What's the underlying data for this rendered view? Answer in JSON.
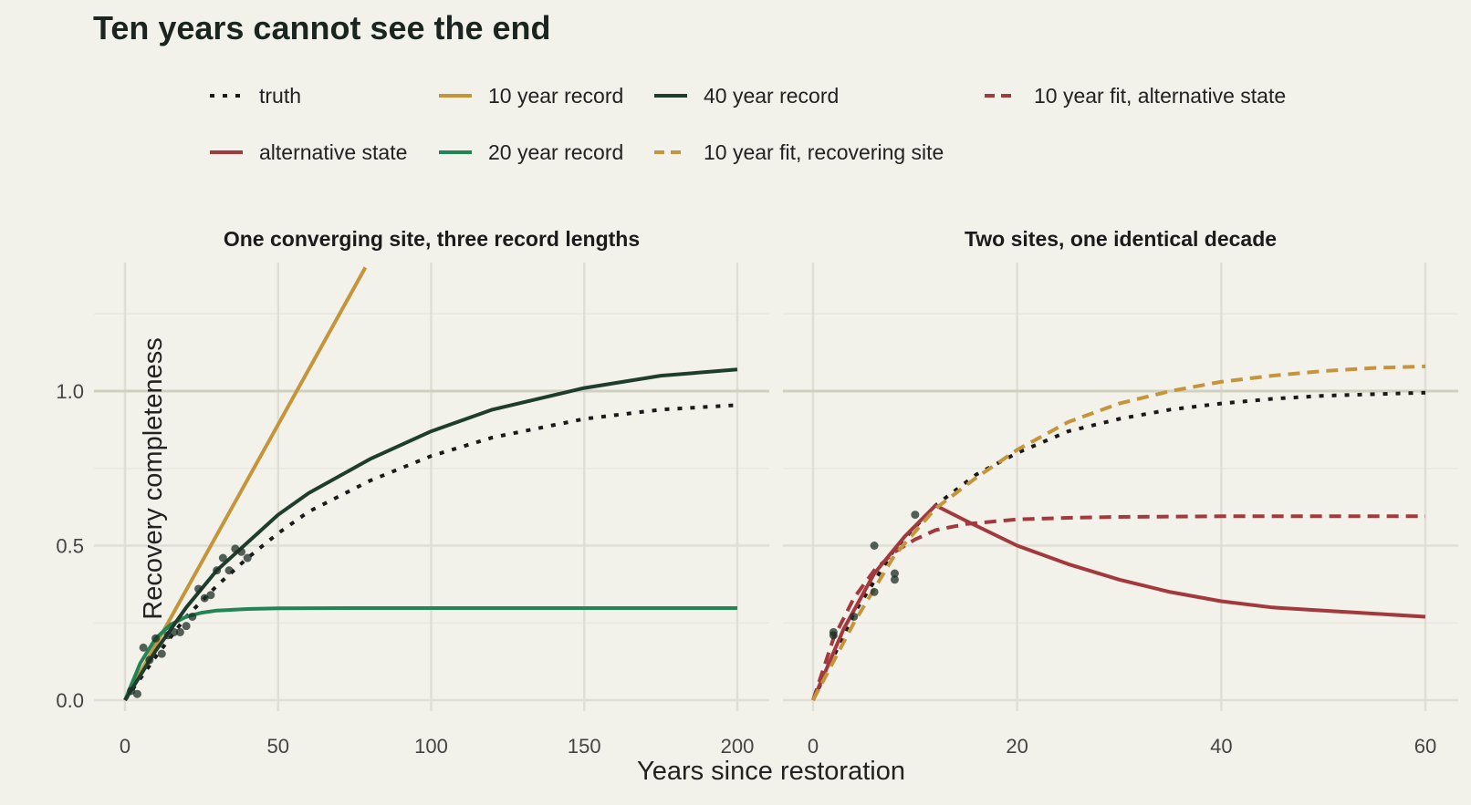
{
  "title": "Ten years cannot see the end",
  "xlabel": "Years since restoration",
  "ylabel": "Recovery completeness",
  "legend": [
    {
      "label": "truth",
      "color": "#1a1a1a",
      "dash": "dotted"
    },
    {
      "label": "10 year record",
      "color": "#c4953a",
      "dash": "solid"
    },
    {
      "label": "40 year record",
      "color": "#1f3d2c",
      "dash": "solid"
    },
    {
      "label": "10 year fit, alternative state",
      "color": "#a3383d",
      "dash": "dashed"
    },
    {
      "label": "alternative state",
      "color": "#a3383d",
      "dash": "solid"
    },
    {
      "label": "20 year record",
      "color": "#238454",
      "dash": "solid"
    },
    {
      "label": "10 year fit, recovering site",
      "color": "#c4953a",
      "dash": "dashed"
    }
  ],
  "chart_data": [
    {
      "type": "line",
      "title": "One converging site, three record lengths",
      "xlim": [
        0,
        200
      ],
      "ylim": [
        0,
        1.4
      ],
      "xticks": [
        0,
        50,
        100,
        150,
        200
      ],
      "yticks": [
        0.0,
        0.5,
        1.0
      ],
      "ytick_labels": [
        "0.0",
        "0.5",
        "1.0"
      ],
      "reference_line_y": 1.0,
      "series": [
        {
          "name": "truth",
          "color": "#1a1a1a",
          "dash": "dotted",
          "x": [
            0,
            10,
            20,
            30,
            40,
            50,
            60,
            80,
            100,
            120,
            150,
            175,
            200
          ],
          "y": [
            0,
            0.14,
            0.27,
            0.37,
            0.46,
            0.54,
            0.61,
            0.71,
            0.79,
            0.85,
            0.91,
            0.94,
            0.955
          ]
        },
        {
          "name": "10 year record",
          "color": "#c4953a",
          "dash": "solid",
          "x": [
            0,
            78.5
          ],
          "y": [
            0,
            1.4
          ]
        },
        {
          "name": "20 year record",
          "color": "#238454",
          "dash": "solid",
          "x": [
            0,
            5,
            10,
            15,
            20,
            25,
            30,
            40,
            50,
            75,
            100,
            150,
            200
          ],
          "y": [
            0,
            0.12,
            0.2,
            0.245,
            0.27,
            0.283,
            0.29,
            0.295,
            0.297,
            0.298,
            0.298,
            0.298,
            0.298
          ]
        },
        {
          "name": "40 year record",
          "color": "#1f3d2c",
          "dash": "solid",
          "x": [
            0,
            10,
            20,
            30,
            40,
            50,
            60,
            80,
            100,
            120,
            150,
            175,
            200
          ],
          "y": [
            0,
            0.16,
            0.3,
            0.42,
            0.51,
            0.6,
            0.67,
            0.78,
            0.87,
            0.94,
            1.01,
            1.05,
            1.07
          ]
        }
      ],
      "points": {
        "x": [
          2,
          4,
          6,
          8,
          10,
          12,
          14,
          16,
          18,
          20,
          22,
          24,
          26,
          28,
          30,
          32,
          34,
          36,
          38,
          40
        ],
        "y": [
          0.03,
          0.02,
          0.17,
          0.13,
          0.2,
          0.15,
          0.21,
          0.22,
          0.22,
          0.24,
          0.27,
          0.36,
          0.33,
          0.34,
          0.42,
          0.46,
          0.42,
          0.49,
          0.48,
          0.46
        ]
      }
    },
    {
      "type": "line",
      "title": "Two sites, one identical decade",
      "xlim": [
        0,
        60
      ],
      "ylim": [
        0,
        1.4
      ],
      "xticks": [
        0,
        20,
        40,
        60
      ],
      "yticks": [
        0.0,
        0.5,
        1.0
      ],
      "ytick_labels": [
        "0.0",
        "0.5",
        "1.0"
      ],
      "reference_line_y": 1.0,
      "series": [
        {
          "name": "truth",
          "color": "#1a1a1a",
          "dash": "dotted",
          "x": [
            0,
            4,
            8,
            12,
            16,
            20,
            25,
            30,
            35,
            40,
            45,
            50,
            55,
            60
          ],
          "y": [
            0,
            0.28,
            0.49,
            0.63,
            0.73,
            0.8,
            0.87,
            0.91,
            0.94,
            0.96,
            0.975,
            0.985,
            0.99,
            0.995
          ]
        },
        {
          "name": "alternative state",
          "color": "#a3383d",
          "dash": "solid",
          "x": [
            0,
            3,
            6,
            9,
            12,
            15,
            20,
            25,
            30,
            35,
            40,
            45,
            50,
            55,
            60
          ],
          "y": [
            0,
            0.23,
            0.41,
            0.53,
            0.63,
            0.58,
            0.5,
            0.44,
            0.39,
            0.35,
            0.32,
            0.3,
            0.29,
            0.28,
            0.27
          ]
        },
        {
          "name": "10 year fit, alternative state",
          "color": "#a3383d",
          "dash": "dashed",
          "x": [
            0,
            2,
            4,
            6,
            8,
            10,
            12,
            15,
            20,
            25,
            30,
            40,
            50,
            60
          ],
          "y": [
            0,
            0.2,
            0.33,
            0.42,
            0.48,
            0.52,
            0.55,
            0.57,
            0.585,
            0.59,
            0.593,
            0.595,
            0.595,
            0.595
          ]
        },
        {
          "name": "10 year fit, recovering site",
          "color": "#c4953a",
          "dash": "dashed",
          "x": [
            0,
            4,
            8,
            12,
            16,
            20,
            25,
            30,
            35,
            40,
            45,
            50,
            55,
            60
          ],
          "y": [
            0,
            0.25,
            0.47,
            0.62,
            0.72,
            0.81,
            0.9,
            0.96,
            1.0,
            1.03,
            1.05,
            1.065,
            1.075,
            1.08
          ]
        }
      ],
      "points": {
        "x": [
          2,
          2,
          4,
          6,
          6,
          8,
          8,
          10
        ],
        "y": [
          0.21,
          0.22,
          0.27,
          0.35,
          0.5,
          0.39,
          0.41,
          0.6
        ]
      }
    }
  ]
}
